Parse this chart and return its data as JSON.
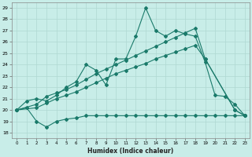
{
  "xlabel": "Humidex (Indice chaleur)",
  "bg_color": "#c8ede8",
  "grid_color": "#afd8d2",
  "line_color": "#1a7a6a",
  "xlim": [
    -0.5,
    23.5
  ],
  "ylim": [
    17.5,
    29.5
  ],
  "xticks": [
    0,
    1,
    2,
    3,
    4,
    5,
    6,
    7,
    8,
    9,
    10,
    11,
    12,
    13,
    14,
    15,
    16,
    17,
    18,
    19,
    20,
    21,
    22,
    23
  ],
  "yticks": [
    18,
    19,
    20,
    21,
    22,
    23,
    24,
    25,
    26,
    27,
    28,
    29
  ],
  "line1_x": [
    0,
    1,
    2,
    3,
    4,
    5,
    6,
    7,
    8,
    9,
    10,
    11,
    12,
    13,
    14,
    15,
    16,
    17,
    18,
    19,
    20,
    21,
    22,
    23
  ],
  "line1_y": [
    20.0,
    20.8,
    21.0,
    20.8,
    21.3,
    22.0,
    22.5,
    24.0,
    23.5,
    22.2,
    24.5,
    24.5,
    26.5,
    29.0,
    27.0,
    26.5,
    27.0,
    26.7,
    26.5,
    24.2,
    21.3,
    21.2,
    20.5,
    19.5
  ],
  "line2_x": [
    0,
    2,
    3,
    4,
    5,
    6,
    7,
    8,
    9,
    10,
    11,
    12,
    13,
    14,
    15,
    16,
    17,
    18,
    19,
    22,
    23
  ],
  "line2_y": [
    20.0,
    20.5,
    21.2,
    21.5,
    21.8,
    22.2,
    22.7,
    23.2,
    23.6,
    24.0,
    24.4,
    24.8,
    25.2,
    25.6,
    26.0,
    26.4,
    26.8,
    27.2,
    24.5,
    20.0,
    19.5
  ],
  "line3_x": [
    0,
    2,
    3,
    4,
    5,
    6,
    7,
    8,
    9,
    10,
    11,
    12,
    13,
    14,
    15,
    16,
    17,
    18,
    19,
    22,
    23
  ],
  "line3_y": [
    20.0,
    20.2,
    20.6,
    21.0,
    21.3,
    21.6,
    22.0,
    22.4,
    22.8,
    23.2,
    23.5,
    23.8,
    24.1,
    24.5,
    24.8,
    25.1,
    25.4,
    25.7,
    24.5,
    20.0,
    19.5
  ],
  "line4_x": [
    0,
    1,
    2,
    3,
    4,
    5,
    6,
    7,
    8,
    9,
    10,
    11,
    12,
    13,
    14,
    15,
    16,
    17,
    18,
    19,
    20,
    21,
    22,
    23
  ],
  "line4_y": [
    20.0,
    20.2,
    19.0,
    18.5,
    19.0,
    19.2,
    19.3,
    19.5,
    19.5,
    19.5,
    19.5,
    19.5,
    19.5,
    19.5,
    19.5,
    19.5,
    19.5,
    19.5,
    19.5,
    19.5,
    19.5,
    19.5,
    19.5,
    19.5
  ]
}
